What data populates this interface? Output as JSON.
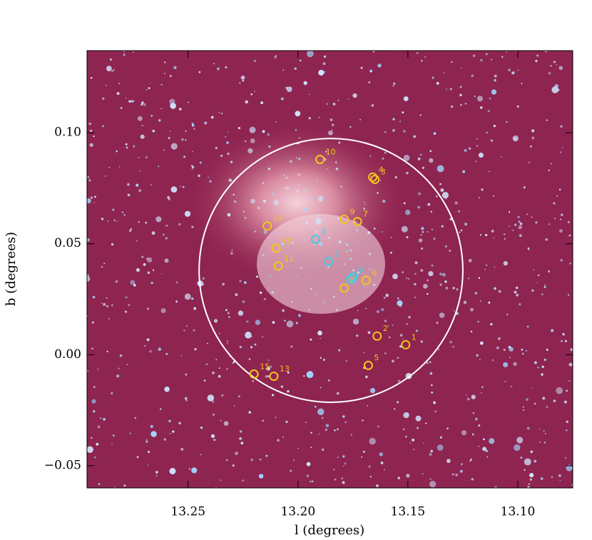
{
  "chart_data": {
    "type": "scatter",
    "xlabel": "l (degrees)",
    "ylabel": "b (degrees)",
    "xlim": [
      13.296,
      13.075
    ],
    "ylim": [
      -0.06,
      0.137
    ],
    "xticks": [
      13.25,
      {
        "value": 13.2,
        "label": "13.20"
      },
      13.15,
      {
        "value": 13.1,
        "label": "13.10"
      }
    ],
    "yticks": [
      {
        "value": -0.05,
        "label": "−0.05"
      },
      {
        "value": 0,
        "label": "0.00"
      },
      0.05,
      {
        "value": 0.1,
        "label": "0.10"
      }
    ],
    "region": {
      "x": 13.185,
      "y": 0.038,
      "r": 0.06,
      "color": "#ffffff"
    },
    "series": [
      {
        "color": "#f5c518",
        "labels": [
          "1",
          "2",
          "3",
          "4",
          "5",
          "6",
          "7",
          "8",
          "9",
          "10",
          "11",
          "12",
          "13",
          "14",
          "15"
        ],
        "x": [
          13.151,
          13.164,
          13.165,
          13.166,
          13.168,
          13.169,
          13.173,
          13.179,
          13.179,
          13.19,
          13.209,
          13.21,
          13.211,
          13.214,
          13.22
        ],
        "values": [
          0.0045,
          0.0084,
          0.079,
          0.08,
          -0.0048,
          0.0335,
          0.06,
          0.03,
          0.061,
          0.088,
          0.04,
          0.048,
          -0.0097,
          0.058,
          -0.0087
        ]
      },
      {
        "color": "#3fd0e0",
        "labels": [
          "1",
          "2",
          "3",
          "4"
        ],
        "x": [
          13.186,
          13.192,
          13.176,
          13.175
        ],
        "values": [
          0.042,
          0.052,
          0.034,
          0.035
        ]
      }
    ]
  }
}
